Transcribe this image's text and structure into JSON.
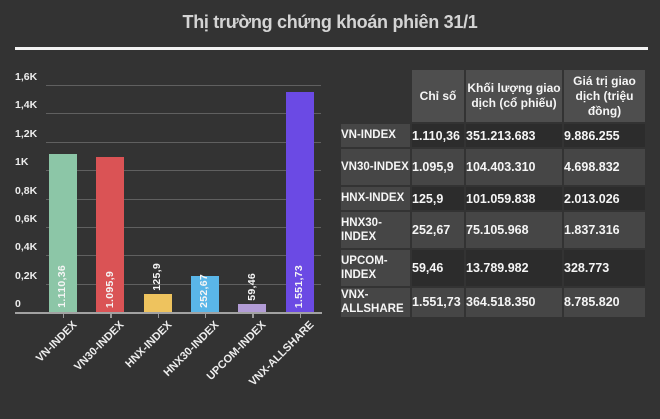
{
  "title": "Thị trường chứng khoán phiên 31/1",
  "chart_data": {
    "type": "bar",
    "categories": [
      "VN-INDEX",
      "VN30-INDEX",
      "HNX-INDEX",
      "HNX30-INDEX",
      "UPCOM-INDEX",
      "VNX-ALLSHARE"
    ],
    "values": [
      1110.36,
      1095.9,
      125.9,
      252.67,
      59.46,
      1551.73
    ],
    "value_labels": [
      "1.110,36",
      "1.095,9",
      "125,9",
      "252,67",
      "59,46",
      "1.551,73"
    ],
    "bar_colors": [
      "#8cc6a7",
      "#da5355",
      "#eec35e",
      "#5ab6e8",
      "#b29cd6",
      "#6b4ae4"
    ],
    "title": "",
    "xlabel": "",
    "ylabel": "",
    "ylim": [
      0,
      1600
    ],
    "ytick_step": 200,
    "ytick_labels": [
      "0",
      "0,2K",
      "0,4K",
      "0,6K",
      "0,8K",
      "1K",
      "1,2K",
      "1,4K",
      "1,6K"
    ],
    "grid": true,
    "legend_position": "none"
  },
  "table": {
    "columns": [
      "Chỉ số",
      "Khối lượng giao dịch (cổ phiếu)",
      "Giá trị giao dịch (triệu đồng)"
    ],
    "rows": [
      {
        "label": "VN-INDEX",
        "values": [
          "1.110,36",
          "351.213.683",
          "9.886.255"
        ]
      },
      {
        "label": "VN30-INDEX",
        "values": [
          "1.095,9",
          "104.403.310",
          "4.698.832"
        ]
      },
      {
        "label": "HNX-INDEX",
        "values": [
          "125,9",
          "101.059.838",
          "2.013.026"
        ]
      },
      {
        "label": "HNX30-INDEX",
        "values": [
          "252,67",
          "75.105.968",
          "1.837.316"
        ]
      },
      {
        "label": "UPCOM-INDEX",
        "values": [
          "59,46",
          "13.789.982",
          "328.773"
        ]
      },
      {
        "label": "VNX-ALLSHARE",
        "values": [
          "1.551,73",
          "364.518.350",
          "8.785.820"
        ]
      }
    ]
  },
  "colors": {
    "background": "#333333",
    "title_text": "#d4d4d4",
    "title_underline": "#f2f2f2",
    "gridline": "#606060",
    "baseline": "#a2a2a2",
    "axis_tick": "#999999",
    "axis_text": "#ededed",
    "bar_value_text": "#f5f5f5",
    "table_header_bg": "#4e4e4e",
    "table_label_bg": "#464646",
    "table_row_dark_bg": "#2c2c2c",
    "table_row_light_bg": "#464646",
    "table_text": "#f5f5f5"
  }
}
